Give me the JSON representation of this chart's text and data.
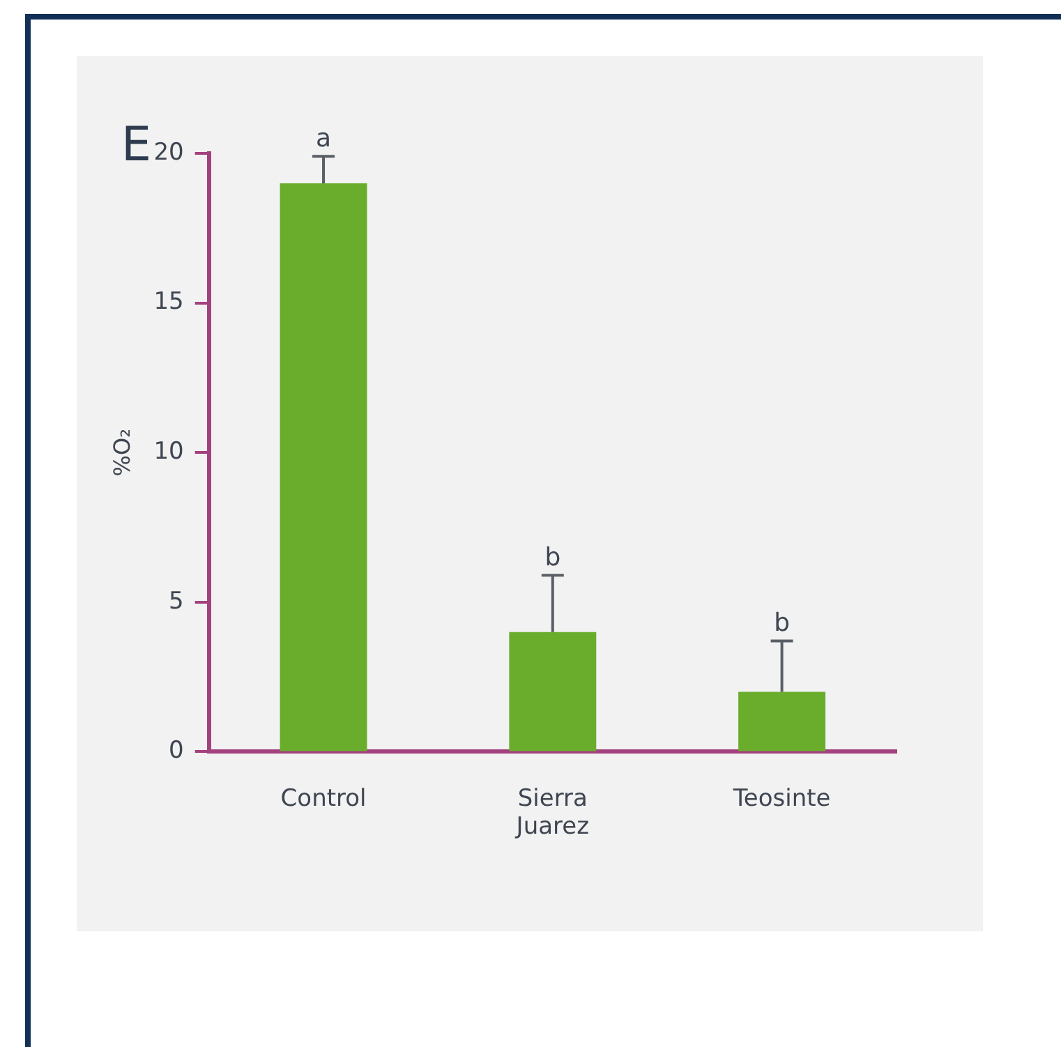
{
  "chart_data": {
    "type": "bar",
    "title": "E",
    "ylabel": "%O₂",
    "categories": [
      "Control",
      "Sierra Juarez",
      "Teosinte"
    ],
    "values": [
      19,
      4,
      2
    ],
    "color": "#6aad2c",
    "errors": [
      [
        19,
        19.9
      ],
      [
        4,
        5.9
      ],
      [
        2,
        3.7
      ]
    ],
    "annotations": [
      {
        "text": "a",
        "x": "Control",
        "y": 19.9
      },
      {
        "text": "b",
        "x": "Sierra Juarez",
        "y": 5.9
      },
      {
        "text": "b",
        "x": "Teosinte",
        "y": 3.7
      }
    ],
    "ylim": [
      0,
      20
    ],
    "yticks": [
      0,
      5,
      10,
      15,
      20
    ],
    "grid": false,
    "legend": false
  }
}
